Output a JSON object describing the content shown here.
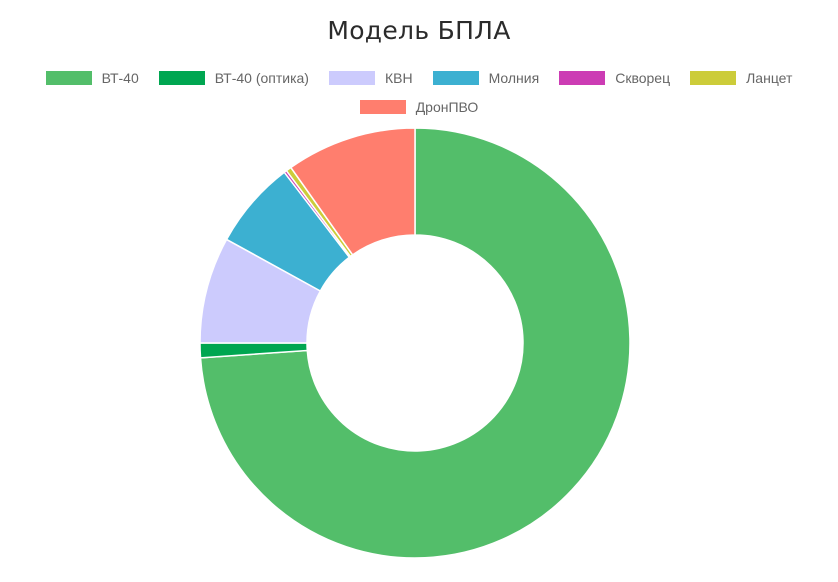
{
  "chart_data": {
    "type": "pie",
    "variant": "doughnut",
    "title": "Модель БПЛА",
    "legend_position": "top",
    "categories": [
      "ВТ-40",
      "ВТ-40 (оптика)",
      "КВН",
      "Молния",
      "Скворец",
      "Ланцет",
      "ДронПВО"
    ],
    "values": [
      73.9,
      1.1,
      8.0,
      6.6,
      0.2,
      0.4,
      9.8
    ],
    "colors": [
      "#53be6a",
      "#00a651",
      "#cccbfd",
      "#3cb0d1",
      "#cc3cb4",
      "#cccc3a",
      "#ff7e6e"
    ]
  }
}
